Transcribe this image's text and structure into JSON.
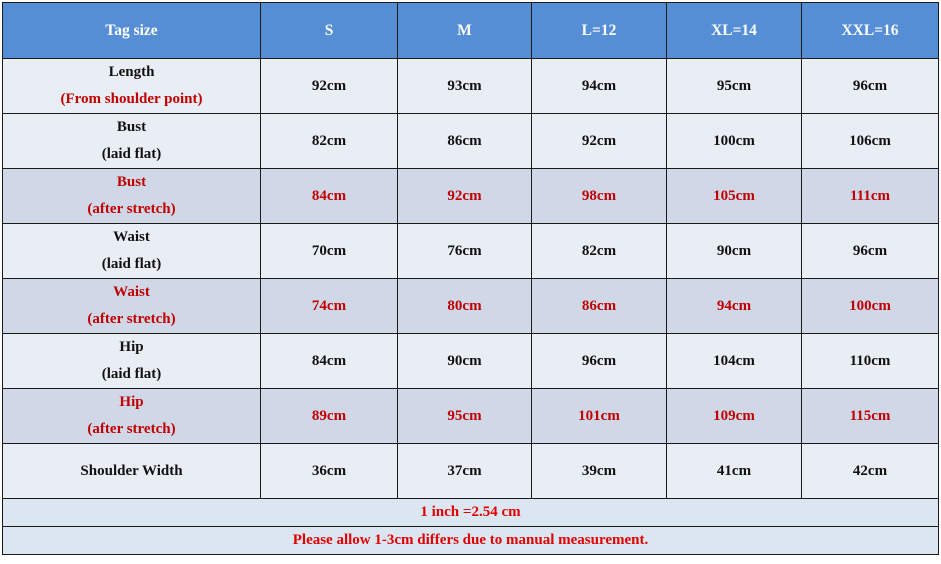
{
  "colors": {
    "header_bg": "#558ed5",
    "row_bg": "#e9edf4",
    "stretch_row_bg": "#d0d8e8",
    "accent_red": "#c00000"
  },
  "header": [
    "Tag size",
    "S",
    "M",
    "L=12",
    "XL=14",
    "XXL=16"
  ],
  "rows": [
    {
      "label": "Length",
      "sublabel": "(From shoulder point)",
      "highlight": false,
      "values": [
        "92cm",
        "93cm",
        "94cm",
        "95cm",
        "96cm"
      ]
    },
    {
      "label": "Bust",
      "sublabel": "(laid flat)",
      "highlight": false,
      "values": [
        "82cm",
        "86cm",
        "92cm",
        "100cm",
        "106cm"
      ]
    },
    {
      "label": "Bust",
      "sublabel": "(after stretch)",
      "highlight": true,
      "values": [
        "84cm",
        "92cm",
        "98cm",
        "105cm",
        "111cm"
      ]
    },
    {
      "label": "Waist",
      "sublabel": "(laid flat)",
      "highlight": false,
      "values": [
        "70cm",
        "76cm",
        "82cm",
        "90cm",
        "96cm"
      ]
    },
    {
      "label": "Waist",
      "sublabel": "(after stretch)",
      "highlight": true,
      "values": [
        "74cm",
        "80cm",
        "86cm",
        "94cm",
        "100cm"
      ]
    },
    {
      "label": "Hip",
      "sublabel": "(laid flat)",
      "highlight": false,
      "values": [
        "84cm",
        "90cm",
        "96cm",
        "104cm",
        "110cm"
      ]
    },
    {
      "label": "Hip",
      "sublabel": "(after stretch)",
      "highlight": true,
      "values": [
        "89cm",
        "95cm",
        "101cm",
        "109cm",
        "115cm"
      ]
    },
    {
      "label": "Shoulder Width",
      "sublabel": "",
      "highlight": false,
      "values": [
        "36cm",
        "37cm",
        "39cm",
        "41cm",
        "42cm"
      ]
    }
  ],
  "footer": [
    "1 inch =2.54 cm",
    "Please allow 1-3cm differs due to manual measurement."
  ]
}
